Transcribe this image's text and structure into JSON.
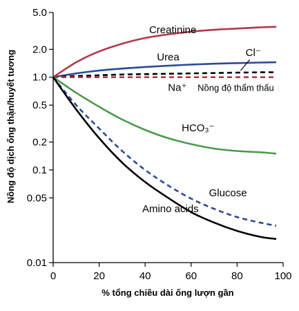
{
  "chart_data": {
    "type": "line",
    "title": "",
    "xlabel": "% tổng chiều dài ống lượn gần",
    "ylabel": "Nồng độ dịch ống thận/huyết tương",
    "xlim": [
      0,
      100
    ],
    "ylim": [
      0.01,
      5.0
    ],
    "yscale": "log",
    "grid": false,
    "legend": "none",
    "x_ticks": [
      0,
      20,
      40,
      60,
      80,
      100
    ],
    "x_tick_labels": [
      "0",
      "20",
      "40",
      "60",
      "80",
      "100"
    ],
    "y_ticks": [
      5.0,
      2.0,
      1.0,
      0.5,
      0.2,
      0.1,
      0.05,
      0.01
    ],
    "y_tick_labels": [
      "5.0",
      "2.0",
      "1.0",
      "0.5",
      "0.2",
      "0.1",
      "0.05",
      "0.01"
    ],
    "x": [
      0,
      10,
      20,
      30,
      40,
      50,
      60,
      70,
      80,
      90,
      97
    ],
    "series": [
      {
        "name": "Creatinine",
        "color": "#b03a48",
        "dash": "solid",
        "values": [
          1.0,
          1.45,
          1.9,
          2.3,
          2.65,
          2.9,
          3.1,
          3.25,
          3.35,
          3.45,
          3.5
        ]
      },
      {
        "name": "Urea",
        "color": "#2c4a96",
        "dash": "solid",
        "values": [
          1.0,
          1.1,
          1.18,
          1.24,
          1.29,
          1.33,
          1.37,
          1.4,
          1.42,
          1.44,
          1.45
        ]
      },
      {
        "name": "Cl⁻",
        "color": "#000000",
        "dash": "dashed",
        "values": [
          1.0,
          1.03,
          1.05,
          1.07,
          1.08,
          1.09,
          1.1,
          1.11,
          1.12,
          1.13,
          1.13
        ]
      },
      {
        "name": "Na⁺",
        "color": "#b03a48",
        "dash": "dashed",
        "values": [
          1.0,
          1.0,
          1.0,
          1.0,
          1.0,
          1.0,
          1.0,
          1.0,
          1.0,
          1.0,
          1.0
        ]
      },
      {
        "name": "HCO₃⁻",
        "color": "#4a9a4a",
        "dash": "solid",
        "values": [
          1.0,
          0.68,
          0.48,
          0.35,
          0.27,
          0.22,
          0.19,
          0.17,
          0.16,
          0.155,
          0.15
        ]
      },
      {
        "name": "Glucose",
        "color": "#2c4a96",
        "dash": "dashed",
        "values": [
          1.0,
          0.5,
          0.28,
          0.16,
          0.1,
          0.068,
          0.049,
          0.038,
          0.031,
          0.027,
          0.025
        ]
      },
      {
        "name": "Amino acids",
        "color": "#000000",
        "dash": "solid",
        "values": [
          1.0,
          0.45,
          0.22,
          0.12,
          0.074,
          0.05,
          0.035,
          0.027,
          0.022,
          0.019,
          0.018
        ]
      }
    ],
    "annotations": [
      {
        "text": "Creatinine",
        "x": 52,
        "y": 3.0
      },
      {
        "text": "Urea",
        "x": 50,
        "y": 1.52
      },
      {
        "text": "Cl⁻",
        "x": 87,
        "y": 1.7
      },
      {
        "text": "Na⁺",
        "x": 54,
        "y": 0.71
      },
      {
        "text": "Nồng độ thẩm thấu",
        "x": 96,
        "y": 0.71
      },
      {
        "text": "HCO₃⁻",
        "x": 63,
        "y": 0.26
      },
      {
        "text": "Glucose",
        "x": 76,
        "y": 0.052
      },
      {
        "text": "Amino acids",
        "x": 51,
        "y": 0.035
      }
    ]
  }
}
